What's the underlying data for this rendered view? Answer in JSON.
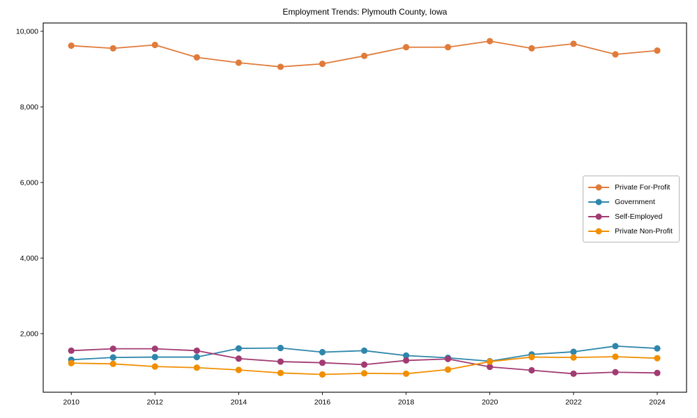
{
  "title": "Employment Trends: Plymouth County, Iowa",
  "chart_data": {
    "type": "line",
    "title": "Employment Trends: Plymouth County, Iowa",
    "xlabel": "",
    "ylabel": "",
    "grid": false,
    "legend_position": "center-right",
    "x": [
      2010,
      2011,
      2012,
      2013,
      2014,
      2015,
      2016,
      2017,
      2018,
      2019,
      2020,
      2021,
      2022,
      2023,
      2024
    ],
    "series": [
      {
        "name": "Private For-Profit",
        "color": "#E07B3A",
        "values": [
          9620,
          9550,
          9640,
          9310,
          9170,
          9060,
          9140,
          9350,
          9580,
          9580,
          9740,
          9550,
          9670,
          9390,
          9490
        ]
      },
      {
        "name": "Government",
        "color": "#2E86AB",
        "values": [
          1310,
          1370,
          1380,
          1380,
          1610,
          1620,
          1510,
          1550,
          1420,
          1360,
          1270,
          1450,
          1520,
          1670,
          1610
        ]
      },
      {
        "name": "Self-Employed",
        "color": "#A23B72",
        "values": [
          1550,
          1600,
          1600,
          1550,
          1340,
          1260,
          1230,
          1180,
          1290,
          1330,
          1120,
          1030,
          940,
          980,
          960
        ]
      },
      {
        "name": "Private Non-Profit",
        "color": "#F18F01",
        "values": [
          1220,
          1200,
          1130,
          1100,
          1040,
          960,
          920,
          950,
          940,
          1050,
          1260,
          1380,
          1370,
          1390,
          1350
        ]
      }
    ],
    "xticks": [
      2010,
      2012,
      2014,
      2016,
      2018,
      2020,
      2022,
      2024
    ],
    "yticks": [
      2000,
      4000,
      6000,
      8000,
      10000
    ],
    "ytick_labels": [
      "2,000",
      "4,000",
      "6,000",
      "8,000",
      "10,000"
    ],
    "xlim": [
      2009.33,
      2024.7
    ],
    "ylim": [
      450,
      10220
    ]
  }
}
